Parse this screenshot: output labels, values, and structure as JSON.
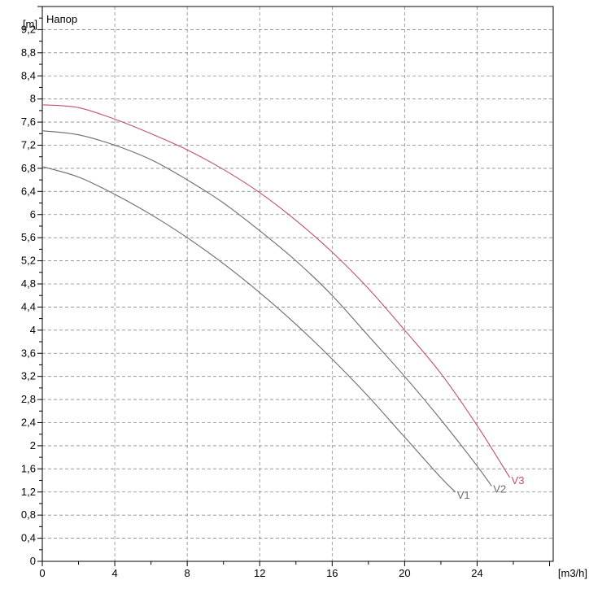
{
  "chart_data": {
    "type": "line",
    "title": "",
    "panel_label": "Напор",
    "xlabel": "[m3/h]",
    "ylabel": "[m]",
    "xlim": [
      0,
      28.2
    ],
    "ylim": [
      0,
      9.6
    ],
    "x_ticks": [
      0,
      4,
      8,
      12,
      16,
      20,
      24
    ],
    "y_ticks": [
      "0",
      "0,4",
      "0,8",
      "1,2",
      "1,6",
      "2",
      "2,4",
      "2,8",
      "3,2",
      "3,6",
      "4",
      "4,4",
      "4,8",
      "5,2",
      "5,6",
      "6",
      "6,4",
      "6,8",
      "7,2",
      "7,6",
      "8",
      "8,4",
      "8,8",
      "9,2"
    ],
    "x_grid_step": 2,
    "y_grid_step": 0.2,
    "grid": true,
    "series": [
      {
        "name": "V1",
        "color": "#6b6b6b",
        "x": [
          0,
          2,
          4,
          6,
          8,
          10,
          12,
          14,
          16,
          18,
          20,
          22,
          22.8
        ],
        "y": [
          6.83,
          6.65,
          6.35,
          6.0,
          5.6,
          5.15,
          4.65,
          4.1,
          3.5,
          2.85,
          2.15,
          1.45,
          1.2
        ]
      },
      {
        "name": "V2",
        "color": "#6b6b6b",
        "x": [
          0,
          2,
          4,
          6,
          8,
          10,
          12,
          14,
          16,
          18,
          20,
          22,
          24,
          24.8
        ],
        "y": [
          7.45,
          7.38,
          7.2,
          6.95,
          6.6,
          6.2,
          5.72,
          5.2,
          4.6,
          3.9,
          3.2,
          2.45,
          1.65,
          1.3
        ]
      },
      {
        "name": "V3",
        "color": "#c0506a",
        "x": [
          0,
          2,
          4,
          6,
          8,
          10,
          12,
          14,
          16,
          18,
          20,
          22,
          24,
          25.8
        ],
        "y": [
          7.9,
          7.85,
          7.65,
          7.4,
          7.12,
          6.78,
          6.38,
          5.9,
          5.35,
          4.72,
          4.0,
          3.25,
          2.35,
          1.45
        ]
      }
    ]
  }
}
